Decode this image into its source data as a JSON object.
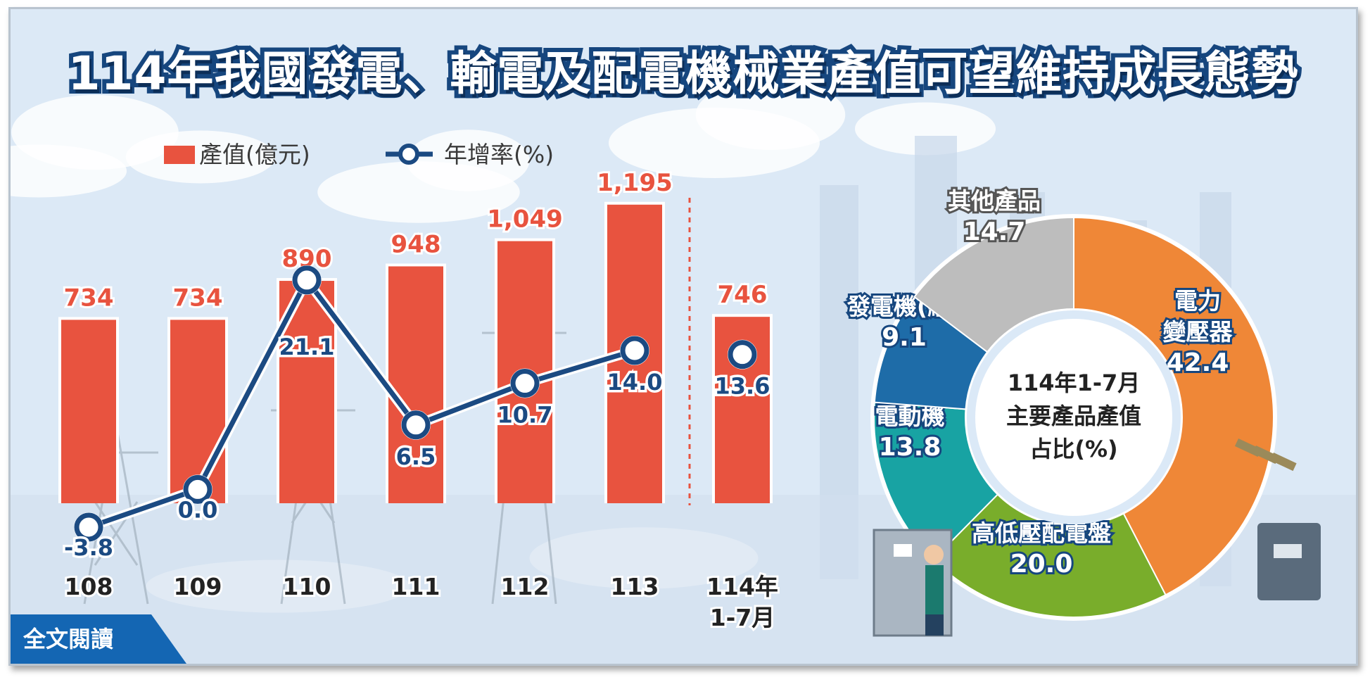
{
  "title": "114年我國發電、輸電及配電機械業產值可望維持成長態勢",
  "read_more_label": "全文閱讀",
  "chart_data": [
    {
      "type": "bar",
      "legend": [
        "產值(億元)",
        "年增率(%)"
      ],
      "categories": [
        "108",
        "109",
        "110",
        "111",
        "112",
        "113",
        "114年\n1-7月"
      ],
      "series": [
        {
          "name": "產值(億元)",
          "type": "bar",
          "values": [
            734,
            734,
            890,
            948,
            1049,
            1195,
            746
          ],
          "labels": [
            "734",
            "734",
            "890",
            "948",
            "1,049",
            "1,195",
            "746"
          ],
          "color": "#e8533f"
        },
        {
          "name": "年增率(%)",
          "type": "line",
          "values": [
            -3.8,
            0.0,
            21.1,
            6.5,
            10.7,
            14.0,
            13.6
          ],
          "labels": [
            "-3.8",
            "0.0",
            "21.1",
            "6.5",
            "10.7",
            "14.0",
            "13.6"
          ],
          "color": "#1b4a82"
        }
      ]
    },
    {
      "type": "pie",
      "center_label": [
        "114年1-7月",
        "主要產品產值",
        "占比(%)"
      ],
      "slices": [
        {
          "name": [
            "電力",
            "變壓器"
          ],
          "value": 42.4,
          "label": "42.4",
          "color": "#ef8737"
        },
        {
          "name": [
            "高低壓配電盤"
          ],
          "value": 20.0,
          "label": "20.0",
          "color": "#79ad2b"
        },
        {
          "name": [
            "電動機"
          ],
          "value": 13.8,
          "label": "13.8",
          "color": "#18a3a3"
        },
        {
          "name": [
            "發電機(組)"
          ],
          "value": 9.1,
          "label": "9.1",
          "color": "#1e6ca8"
        },
        {
          "name": [
            "其他產品"
          ],
          "value": 14.7,
          "label": "14.7",
          "color": "#bdbdbd"
        }
      ]
    }
  ]
}
